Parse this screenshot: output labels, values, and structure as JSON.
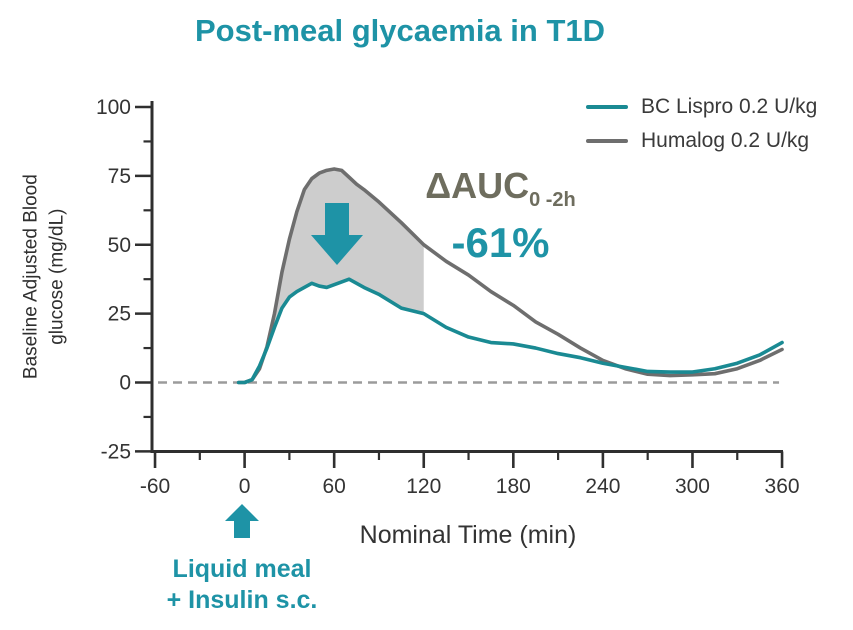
{
  "colors": {
    "accent": "#1e93a6",
    "teal_line": "#1a8a93",
    "gray_line": "#6e6e6e",
    "shade": "#cdcdcd",
    "dashed": "#9b9b9b",
    "axis": "#2f2f2f",
    "tick_text": "#343434",
    "legend_text": "#3a3a3a",
    "auc_text": "#6e6d5e"
  },
  "annotation": {
    "label": "ΔAUC",
    "subscript": "0 -2h",
    "value": "-61%"
  },
  "meal_marker": {
    "line1": "Liquid meal",
    "line2": "+ Insulin s.c."
  },
  "chart_data": {
    "type": "line",
    "title": "Post-meal glycaemia in T1D",
    "xlabel": "Nominal Time (min)",
    "ylabel": "Baseline Adjusted Blood glucose (mg/dL)",
    "ylabel_lines": [
      "Baseline Adjusted Blood",
      "glucose (mg/dL)"
    ],
    "xlim": [
      -60,
      360
    ],
    "ylim": [
      -25,
      100
    ],
    "x_ticks": [
      -60,
      0,
      60,
      120,
      180,
      240,
      300,
      360
    ],
    "x_minor_ticks": [
      -30,
      30,
      90,
      150,
      210,
      270,
      330
    ],
    "y_ticks": [
      100,
      75,
      50,
      25,
      0,
      -25
    ],
    "y_minor_ticks": [
      87.5,
      62.5,
      37.5,
      12.5,
      -12.5
    ],
    "zero_line": {
      "y": 0,
      "style": "dashed"
    },
    "legend_position": "top-right",
    "grid": false,
    "x": [
      -4,
      0,
      5,
      10,
      15,
      20,
      25,
      30,
      35,
      40,
      45,
      50,
      55,
      60,
      65,
      70,
      75,
      80,
      90,
      105,
      120,
      135,
      150,
      165,
      180,
      195,
      210,
      225,
      240,
      255,
      270,
      285,
      300,
      315,
      330,
      345,
      360
    ],
    "series": [
      {
        "name": "BC Lispro 0.2 U/kg",
        "color": "#1a8a93",
        "values": [
          0,
          0,
          1,
          6,
          12.5,
          20,
          27,
          31,
          33,
          34.5,
          36,
          35,
          34.5,
          35.5,
          36.5,
          37.5,
          36,
          34.5,
          32,
          27,
          25,
          20,
          16.5,
          14.5,
          14,
          12.5,
          10.5,
          9,
          7,
          5.5,
          4,
          3.8,
          3.8,
          5,
          7,
          10,
          14.5
        ]
      },
      {
        "name": "Humalog 0.2 U/kg",
        "color": "#6e6e6e",
        "values": [
          0,
          0,
          1,
          5,
          13,
          25,
          40,
          52,
          62,
          70,
          74,
          76,
          77,
          77.5,
          77,
          74.5,
          72,
          70,
          65.5,
          58,
          50,
          44,
          39,
          33,
          28,
          22,
          17.5,
          12.5,
          8,
          5,
          3,
          2.5,
          2.8,
          3.2,
          5,
          8,
          12
        ]
      }
    ],
    "shaded_region": {
      "between": [
        "BC Lispro 0.2 U/kg",
        "Humalog 0.2 U/kg"
      ],
      "x_range": [
        0,
        120
      ],
      "color": "#cdcdcd",
      "label": "ΔAUC 0-2h -61%"
    }
  }
}
